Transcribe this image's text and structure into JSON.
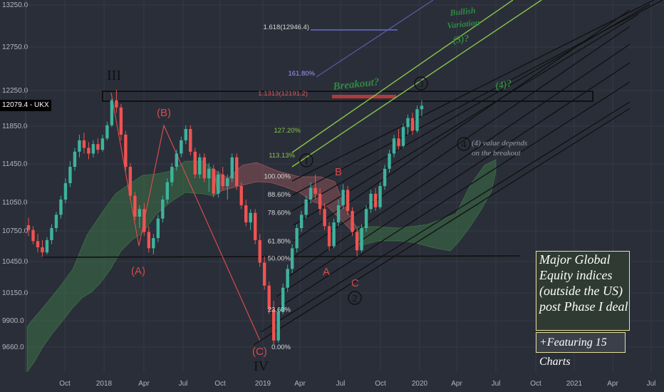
{
  "symbol": "UKX",
  "last_price": "12079.4",
  "title_box": {
    "lines": [
      "Major Global",
      "Equity indices",
      "(outside the US)",
      "post Phase I deal"
    ],
    "subtitle": "+Featuring 15 Charts"
  },
  "colors": {
    "background": "#2a2e39",
    "candle_up": "#3db39e",
    "candle_down": "#ef5350",
    "cloud_bull": "#4caf50",
    "cloud_bear": "#e57373",
    "lime": "#8bc34a",
    "wave_red": "#d84a4a",
    "fib_purple": "#5b5baa"
  },
  "chart_data": {
    "type": "candlestick",
    "y_ticks": [
      "13250.0",
      "12750.0",
      "12250.0",
      "11850.0",
      "11450.0",
      "11050.0",
      "10750.0",
      "10450.0",
      "10150.0",
      "9900.0",
      "9660.0"
    ],
    "x_ticks": [
      "Oct",
      "2018",
      "Apr",
      "Jul",
      "Oct",
      "2019",
      "Apr",
      "Jul",
      "Oct",
      "2020",
      "Apr",
      "Jul",
      "Oct",
      "2021",
      "Apr",
      "Jul"
    ],
    "y_range": [
      9470,
      13320
    ],
    "horizontal_support": 10480,
    "breakout_zone": [
      12140,
      12240
    ],
    "wave_labels": {
      "III": "III",
      "IV": "IV",
      "A_paren": "(A)",
      "B_paren": "(B)",
      "C_paren": "(C)",
      "A": "A",
      "B": "B",
      "C": "C",
      "one": "1",
      "two": "2",
      "three": "3",
      "four": "4"
    },
    "fib_levels": [
      {
        "label": "0.00%",
        "price": 9660
      },
      {
        "label": "23.60%",
        "price": 10000
      },
      {
        "label": "50.00%",
        "price": 10480
      },
      {
        "label": "61.80%",
        "price": 10650
      },
      {
        "label": "78.60%",
        "price": 10940
      },
      {
        "label": "88.60%",
        "price": 11130
      },
      {
        "label": "100.00%",
        "price": 11320
      }
    ],
    "ext_levels": [
      {
        "label": "113.13%",
        "price": 11530
      },
      {
        "label": "127.20%",
        "price": 11800
      },
      {
        "label": "161.80%",
        "price": 12380
      },
      {
        "label": "1.618(12946.4)",
        "price": 12946.4
      },
      {
        "label": "1.1313(12191.2)",
        "price": 12191.2
      }
    ],
    "annotations": {
      "breakout": "Breakout?",
      "bullish": "Bullish",
      "variation": "Variation",
      "three_q": "(3)?",
      "four_q": "(4)?",
      "four_note_1": "(4) value depends",
      "four_note_2": "on the breakout"
    },
    "candles": [
      [
        10810,
        10890,
        10700,
        10760
      ],
      [
        10760,
        10800,
        10620,
        10650
      ],
      [
        10650,
        10720,
        10540,
        10590
      ],
      [
        10590,
        10660,
        10500,
        10540
      ],
      [
        10540,
        10690,
        10520,
        10660
      ],
      [
        10660,
        10820,
        10620,
        10780
      ],
      [
        10780,
        10950,
        10740,
        10920
      ],
      [
        10920,
        11120,
        10880,
        11080
      ],
      [
        11080,
        11300,
        11040,
        11250
      ],
      [
        11250,
        11480,
        11210,
        11420
      ],
      [
        11420,
        11620,
        11380,
        11580
      ],
      [
        11580,
        11760,
        11520,
        11700
      ],
      [
        11700,
        11780,
        11560,
        11620
      ],
      [
        11620,
        11680,
        11500,
        11560
      ],
      [
        11560,
        11700,
        11520,
        11660
      ],
      [
        11660,
        11720,
        11560,
        11600
      ],
      [
        11600,
        11760,
        11580,
        11720
      ],
      [
        11720,
        11900,
        11700,
        11860
      ],
      [
        11860,
        12160,
        11840,
        12140
      ],
      [
        12140,
        12260,
        12000,
        12060
      ],
      [
        12060,
        12100,
        11700,
        11760
      ],
      [
        11760,
        11800,
        11380,
        11420
      ],
      [
        11420,
        11460,
        11080,
        11120
      ],
      [
        11120,
        11160,
        10860,
        10900
      ],
      [
        10900,
        11020,
        10780,
        10980
      ],
      [
        10980,
        11040,
        10700,
        10740
      ],
      [
        10740,
        10800,
        10540,
        10580
      ],
      [
        10580,
        10720,
        10520,
        10680
      ],
      [
        10680,
        10920,
        10640,
        10880
      ],
      [
        10880,
        11120,
        10840,
        11080
      ],
      [
        11080,
        11300,
        11040,
        11260
      ],
      [
        11260,
        11460,
        11220,
        11420
      ],
      [
        11420,
        11600,
        11380,
        11560
      ],
      [
        11560,
        11740,
        11520,
        11700
      ],
      [
        11700,
        11860,
        11660,
        11820
      ],
      [
        11820,
        11860,
        11540,
        11580
      ],
      [
        11580,
        11620,
        11300,
        11340
      ],
      [
        11340,
        11560,
        11300,
        11520
      ],
      [
        11520,
        11560,
        11260,
        11300
      ],
      [
        11300,
        11460,
        11160,
        11400
      ],
      [
        11400,
        11440,
        11100,
        11140
      ],
      [
        11140,
        11380,
        11100,
        11340
      ],
      [
        11340,
        11420,
        11180,
        11220
      ],
      [
        11220,
        11340,
        11080,
        11300
      ],
      [
        11300,
        11560,
        11260,
        11520
      ],
      [
        11520,
        11560,
        11180,
        11220
      ],
      [
        11220,
        11260,
        10980,
        11020
      ],
      [
        11020,
        11080,
        10800,
        10840
      ],
      [
        10840,
        10980,
        10760,
        10940
      ],
      [
        10940,
        10980,
        10620,
        10660
      ],
      [
        10660,
        10720,
        10400,
        10440
      ],
      [
        10440,
        10500,
        10180,
        10220
      ],
      [
        10220,
        10260,
        9960,
        10000
      ],
      [
        10000,
        10080,
        9680,
        9720
      ],
      [
        9720,
        10020,
        9700,
        9980
      ],
      [
        9980,
        10240,
        9960,
        10200
      ],
      [
        10200,
        10420,
        10160,
        10380
      ],
      [
        10380,
        10620,
        10340,
        10580
      ],
      [
        10580,
        10820,
        10540,
        10780
      ],
      [
        10780,
        10960,
        10740,
        10920
      ],
      [
        10920,
        11120,
        10880,
        11080
      ],
      [
        11080,
        11260,
        11040,
        11200
      ],
      [
        11200,
        11340,
        11080,
        11140
      ],
      [
        11140,
        11200,
        10920,
        10980
      ],
      [
        10980,
        11040,
        10760,
        10800
      ],
      [
        10800,
        10840,
        10560,
        10600
      ],
      [
        10600,
        10880,
        10580,
        10840
      ],
      [
        10840,
        11080,
        10800,
        11020
      ],
      [
        11020,
        11240,
        10980,
        11180
      ],
      [
        11180,
        11220,
        10920,
        10960
      ],
      [
        10960,
        11000,
        10700,
        10740
      ],
      [
        10740,
        10780,
        10500,
        10560
      ],
      [
        10560,
        10820,
        10540,
        10780
      ],
      [
        10780,
        11020,
        10740,
        10980
      ],
      [
        10980,
        11180,
        10940,
        11140
      ],
      [
        11140,
        11200,
        10960,
        11000
      ],
      [
        11000,
        11260,
        10980,
        11220
      ],
      [
        11220,
        11440,
        11180,
        11400
      ],
      [
        11400,
        11600,
        11360,
        11560
      ],
      [
        11560,
        11760,
        11520,
        11720
      ],
      [
        11720,
        11820,
        11600,
        11640
      ],
      [
        11640,
        11880,
        11620,
        11840
      ],
      [
        11840,
        11980,
        11760,
        11940
      ],
      [
        11940,
        12000,
        11760,
        11800
      ],
      [
        11800,
        12080,
        11780,
        12040
      ],
      [
        12040,
        12140,
        11960,
        12079
      ]
    ]
  }
}
